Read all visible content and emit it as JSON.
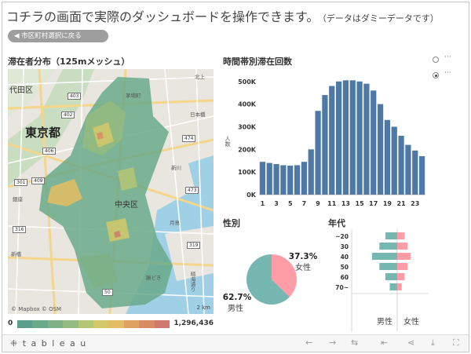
{
  "headline": {
    "title": "コチラの画面で実際のダッシュボードを操作できます。",
    "note": "（データはダミーデータです）"
  },
  "back_button": {
    "label": "◀  市区町村選択に戻る"
  },
  "map_panel": {
    "title": "滞在者分布（125mメッシュ）",
    "labels": {
      "chiyoda": "代田区",
      "tokyo": "東京都",
      "chuo": "中央区",
      "harumi": "晴海通り",
      "kitaue": "北上",
      "niho": "日本橋",
      "shinkawa": "新川",
      "tsukishima": "月島",
      "kachidoki": "勝どき",
      "ginza": "銀座",
      "shinbashi": "新橋",
      "kayaba": "茅場町"
    },
    "routes": [
      "403",
      "402",
      "406",
      "301",
      "474",
      "409",
      "316",
      "473",
      "50",
      "319"
    ],
    "attribution": "© Mapbox  © OSM",
    "scale": "2 km"
  },
  "legend": {
    "min": "0",
    "max": "1,296,436",
    "colors": [
      "#5a9f8c",
      "#6aa98a",
      "#7db287",
      "#94bb80",
      "#b4c574",
      "#d2c86a",
      "#e3bd63",
      "#e0a361",
      "#d98b64",
      "#cf7a6c"
    ]
  },
  "chart_data": [
    {
      "type": "bar",
      "title": "時間帯別滞在回数",
      "ylabel": "人数",
      "x": [
        0,
        1,
        2,
        3,
        4,
        5,
        6,
        7,
        8,
        9,
        10,
        11,
        12,
        13,
        14,
        15,
        16,
        17,
        18,
        19,
        20,
        21,
        22,
        23
      ],
      "xticks": [
        "1",
        "3",
        "5",
        "7",
        "9",
        "11",
        "13",
        "15",
        "17",
        "19",
        "21",
        "23"
      ],
      "values": [
        145000,
        140000,
        135000,
        130000,
        128000,
        130000,
        145000,
        200000,
        370000,
        440000,
        480000,
        500000,
        505000,
        505000,
        500000,
        490000,
        460000,
        400000,
        330000,
        300000,
        260000,
        220000,
        195000,
        170000
      ],
      "yticks": [
        "0K",
        "100K",
        "200K",
        "300K",
        "400K",
        "500K"
      ],
      "ylim": [
        0,
        520000
      ],
      "color": "#4e79a7"
    },
    {
      "type": "pie",
      "title": "性別",
      "slices": [
        {
          "label": "女性",
          "value": 37.3,
          "pct": "37.3%",
          "color": "#ff9da7"
        },
        {
          "label": "男性",
          "value": 62.7,
          "pct": "62.7%",
          "color": "#76b7b2"
        }
      ]
    },
    {
      "type": "bar",
      "title": "年代",
      "categories": [
        "~20",
        "30",
        "40",
        "50",
        "60",
        "70~"
      ],
      "series": [
        {
          "name": "男性",
          "values": [
            16,
            24,
            34,
            24,
            16,
            10
          ],
          "color": "#76b7b2"
        },
        {
          "name": "女性",
          "values": [
            10,
            14,
            18,
            14,
            10,
            6
          ],
          "color": "#ff9da7"
        }
      ]
    }
  ],
  "footer": {
    "brand": "⁜ t a b l e a u"
  }
}
